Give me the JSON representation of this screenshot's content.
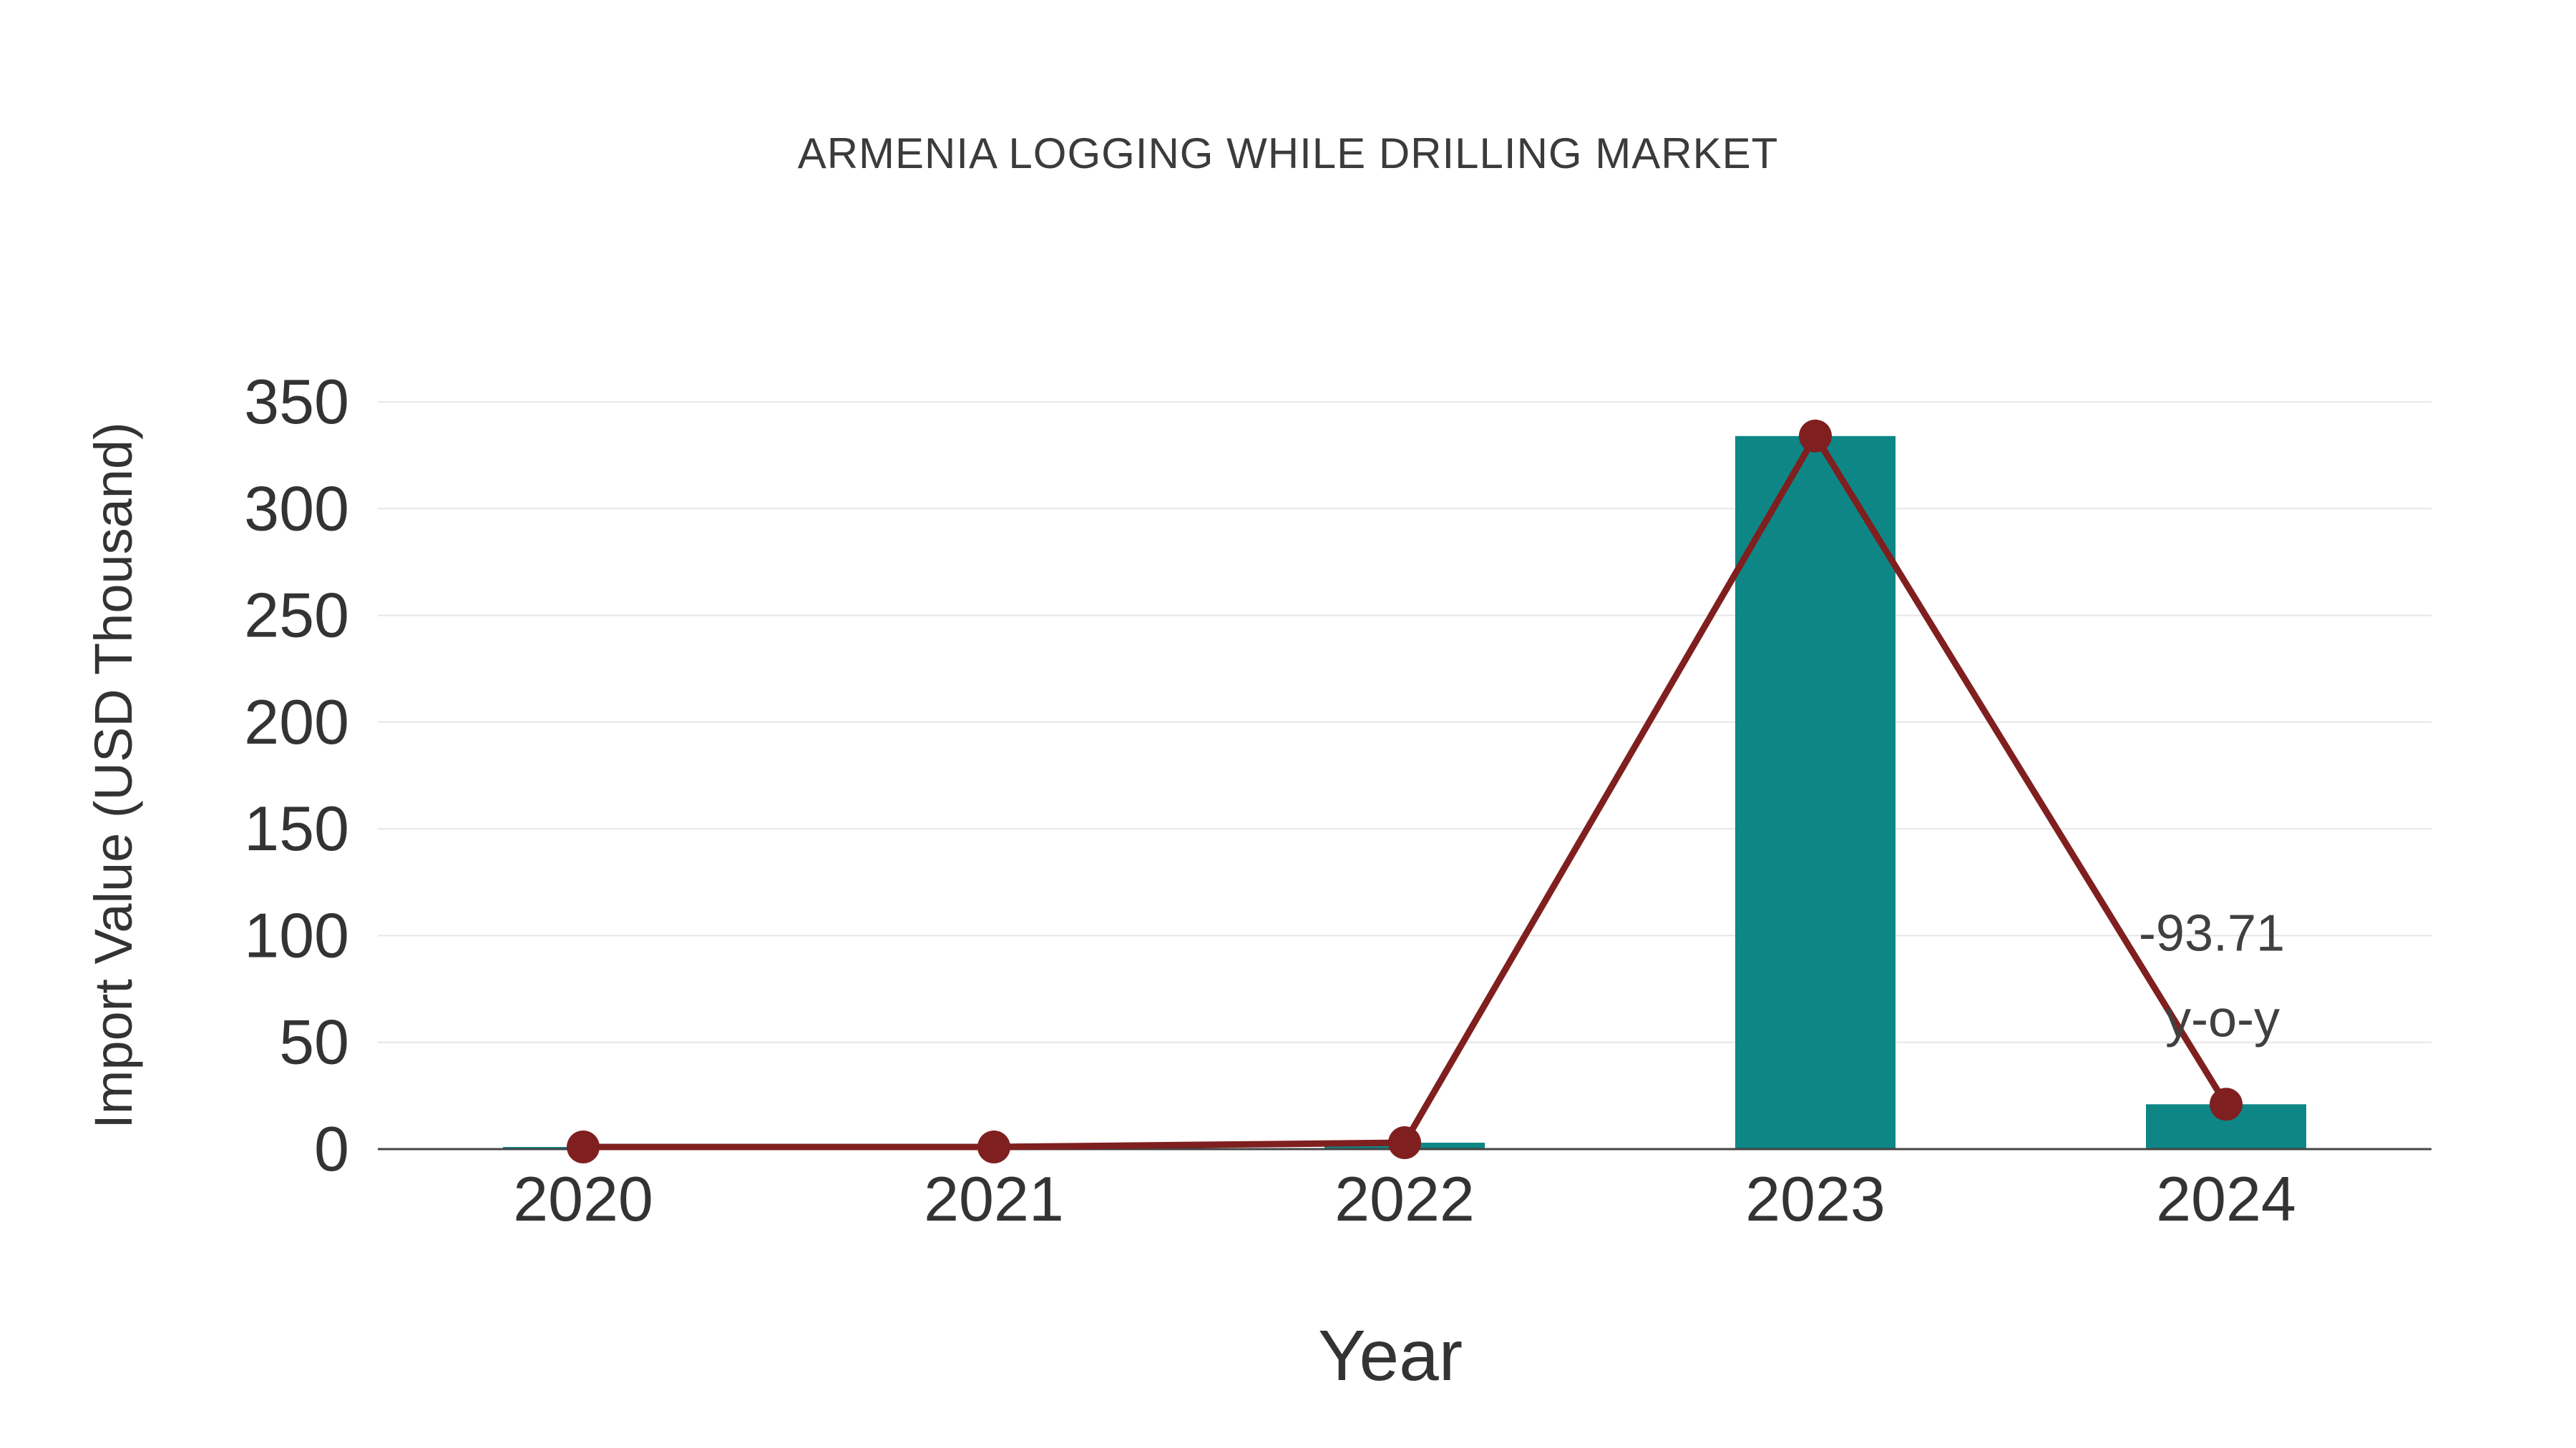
{
  "chart_data": {
    "type": "bar",
    "title": "ARMENIA LOGGING WHILE DRILLING MARKET",
    "xlabel": "Year",
    "ylabel": "Import Value (USD Thousand)",
    "categories": [
      "2020",
      "2021",
      "2022",
      "2023",
      "2024"
    ],
    "series": [
      {
        "name": "Import Value (USD Thousand) - bars",
        "type": "bar",
        "values": [
          1,
          1,
          3,
          334,
          21
        ]
      },
      {
        "name": "Import Value (USD Thousand) - trend line",
        "type": "line",
        "values": [
          1,
          1,
          3,
          334,
          21
        ]
      }
    ],
    "ylim": [
      0,
      350
    ],
    "yticks": [
      0,
      50,
      100,
      150,
      200,
      250,
      300,
      350
    ],
    "grid": true,
    "legend_position": "none",
    "annotation": {
      "text_lines": [
        "-93.71",
        "y-o-y"
      ],
      "category": "2024"
    },
    "colors": {
      "bar": "#0e8686",
      "line": "#7f1f1f",
      "marker": "#7f1f1f",
      "grid": "#e6e6e6",
      "axis": "#444444",
      "tick_text": "#333333",
      "title_text": "#3b3b3b",
      "annotation_text": "#404040"
    }
  }
}
